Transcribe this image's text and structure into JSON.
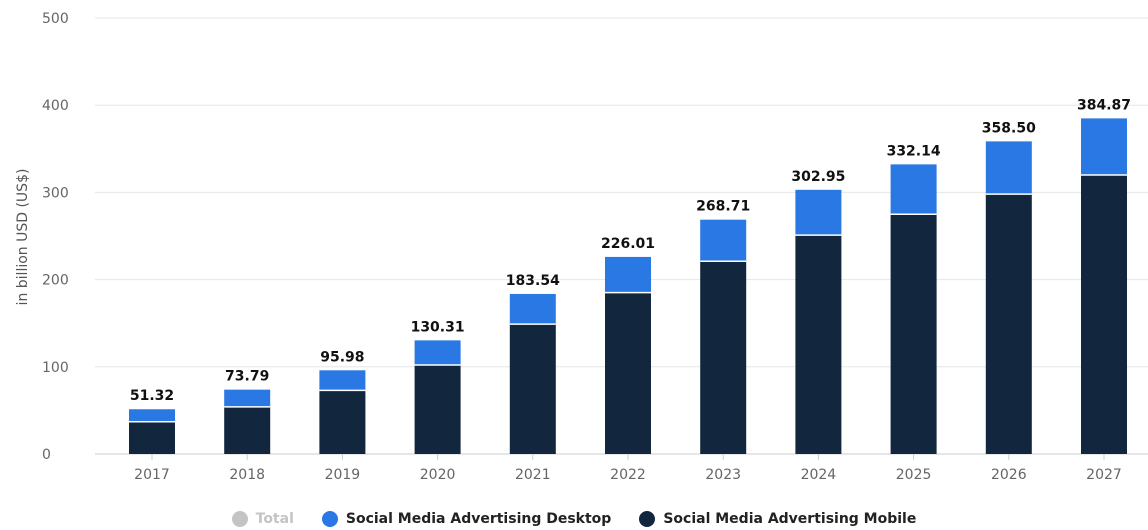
{
  "chart_data": {
    "type": "bar",
    "stacked": true,
    "categories": [
      "2017",
      "2018",
      "2019",
      "2020",
      "2021",
      "2022",
      "2023",
      "2024",
      "2025",
      "2026",
      "2027"
    ],
    "series": [
      {
        "name": "Social Media Advertising Mobile",
        "color": "#12263d",
        "values": [
          37,
          54,
          73,
          102,
          149,
          185,
          221,
          251,
          275,
          298,
          320
        ]
      },
      {
        "name": "Social Media Advertising Desktop",
        "color": "#2a78e4",
        "values": [
          14.32,
          19.79,
          22.98,
          28.31,
          34.54,
          41.01,
          47.71,
          51.95,
          57.14,
          60.5,
          64.87
        ]
      }
    ],
    "totals": [
      "51.32",
      "73.79",
      "95.98",
      "130.31",
      "183.54",
      "226.01",
      "268.71",
      "302.95",
      "332.14",
      "358.50",
      "384.87"
    ],
    "ylabel": "in billion USD (US$)",
    "ylim": [
      0,
      500
    ],
    "yticks": [
      "0",
      "100",
      "200",
      "300",
      "400",
      "500"
    ],
    "grid": true,
    "legend_position": "bottom"
  },
  "legend": [
    {
      "label": "Total",
      "color": "#c4c4c4",
      "disabled": true
    },
    {
      "label": "Social Media Advertising Desktop",
      "color": "#2a78e4",
      "disabled": false
    },
    {
      "label": "Social Media Advertising Mobile",
      "color": "#12263d",
      "disabled": false
    }
  ]
}
